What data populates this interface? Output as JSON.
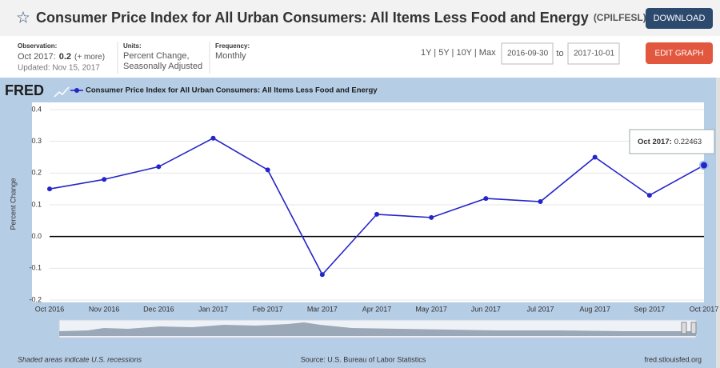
{
  "header": {
    "title": "Consumer Price Index for All Urban Consumers: All Items Less Food and Energy",
    "series_id": "(CPILFESL)",
    "download": "DOWNLOAD"
  },
  "info": {
    "observation_heading": "Observation:",
    "observation_label": "Oct 2017:",
    "observation_value": 0.2,
    "more": "(+ more)",
    "updated": "Updated: Nov 15, 2017",
    "units_heading": "Units:",
    "units_line1": "Percent Change,",
    "units_line2": "Seasonally Adjusted",
    "frequency_heading": "Frequency:",
    "frequency": "Monthly",
    "ranges": "1Y | 5Y | 10Y | Max",
    "start_date": "2016-09-30",
    "to": "to",
    "end_date": "2017-10-01",
    "edit_graph": "EDIT GRAPH"
  },
  "chart_data": {
    "type": "line",
    "logo": "FRED",
    "y_label": "Percent Change",
    "categories": [
      "Oct 2016",
      "Nov 2016",
      "Dec 2016",
      "Jan 2017",
      "Feb 2017",
      "Mar 2017",
      "Apr 2017",
      "May 2017",
      "Jun 2017",
      "Jul 2017",
      "Aug 2017",
      "Sep 2017",
      "Oct 2017"
    ],
    "series": [
      {
        "name": "Consumer Price Index for All Urban Consumers: All Items Less Food and Energy",
        "color": "#2424c8",
        "values": [
          0.15,
          0.18,
          0.22,
          0.31,
          0.21,
          -0.12,
          0.07,
          0.06,
          0.12,
          0.11,
          0.25,
          0.13,
          0.22463
        ]
      }
    ],
    "ylim": [
      -0.2,
      0.4
    ],
    "yticks": [
      -0.2,
      -0.1,
      {
        "value": 0,
        "label": "0.0"
      },
      0.1,
      0.2,
      0.3,
      0.4
    ],
    "grid": true,
    "tooltip": {
      "label": "Oct 2017:",
      "value": 0.22463
    },
    "footer": {
      "note": "Shaded areas indicate U.S. recessions",
      "source": "Source: U.S. Bureau of Labor Statistics",
      "site": "fred.stlouisfed.org"
    }
  }
}
